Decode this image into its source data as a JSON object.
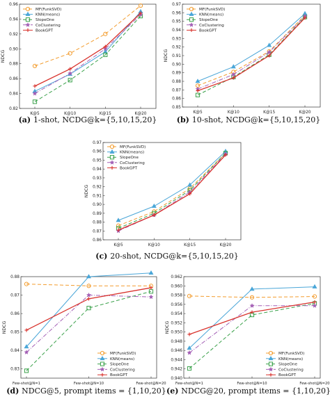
{
  "colors": {
    "MF(FunkSVD)": "#f39c2d",
    "KNN(means)": "#4aa6d8",
    "SlopeOne": "#3aa14a",
    "CoClustering": "#a35fb5",
    "BookGPT": "#d8322c"
  },
  "chart_data": [
    {
      "type": "line",
      "caption_letter": "(a)",
      "caption_text": "1-shot, NCDG@k={5,10,15,20}",
      "ylabel": "NDCG",
      "categories": [
        "K@5",
        "K@10",
        "K@15",
        "K@20"
      ],
      "ylim": [
        0.82,
        0.96
      ],
      "yticks": [
        "0.82",
        "0.84",
        "0.86",
        "0.88",
        "0.90",
        "0.92",
        "0.94",
        "0.96"
      ],
      "legend_position": "top-left",
      "series": [
        {
          "name": "MF(FunkSVD)",
          "marker": "circle",
          "dash": "5,3",
          "values": [
            0.877,
            0.894,
            0.92,
            0.958
          ]
        },
        {
          "name": "KNN(means)",
          "marker": "triangle",
          "dash": "",
          "values": [
            0.843,
            0.866,
            0.896,
            0.95
          ]
        },
        {
          "name": "SlopeOne",
          "marker": "square",
          "dash": "5,3",
          "values": [
            0.829,
            0.858,
            0.892,
            0.944
          ]
        },
        {
          "name": "CoClustering",
          "marker": "star",
          "dash": "6,2,1,2",
          "values": [
            0.84,
            0.867,
            0.9,
            0.946
          ]
        },
        {
          "name": "BookGPT",
          "marker": "plus",
          "dash": "",
          "values": [
            0.85,
            0.873,
            0.903,
            0.948
          ]
        }
      ]
    },
    {
      "type": "line",
      "caption_letter": "(b)",
      "caption_text": "10-shot, NCDG@k={5,10,15,20}",
      "ylabel": "NDCG",
      "categories": [
        "K@5",
        "K@10",
        "K@15",
        "K@20"
      ],
      "ylim": [
        0.85,
        0.97
      ],
      "yticks": [
        "0.85",
        "0.86",
        "0.87",
        "0.88",
        "0.89",
        "0.90",
        "0.91",
        "0.92",
        "0.93",
        "0.94",
        "0.95",
        "0.96",
        "0.97"
      ],
      "legend_position": "top-left",
      "series": [
        {
          "name": "MF(FunkSVD)",
          "marker": "circle",
          "dash": "5,3",
          "values": [
            0.875,
            0.891,
            0.915,
            0.957
          ]
        },
        {
          "name": "KNN(means)",
          "marker": "triangle",
          "dash": "",
          "values": [
            0.88,
            0.897,
            0.922,
            0.959
          ]
        },
        {
          "name": "SlopeOne",
          "marker": "square",
          "dash": "5,3",
          "values": [
            0.864,
            0.885,
            0.911,
            0.955
          ]
        },
        {
          "name": "CoClustering",
          "marker": "star",
          "dash": "6,2,1,2",
          "values": [
            0.871,
            0.888,
            0.914,
            0.956
          ]
        },
        {
          "name": "BookGPT",
          "marker": "plus",
          "dash": "",
          "values": [
            0.869,
            0.884,
            0.91,
            0.954
          ]
        }
      ]
    },
    {
      "type": "line",
      "caption_letter": "(c)",
      "caption_text": "20-shot, NCDG@k={5,10,15,20}",
      "ylabel": "NDCG",
      "categories": [
        "K@5",
        "K@10",
        "K@15",
        "K@20"
      ],
      "ylim": [
        0.86,
        0.97
      ],
      "yticks": [
        "0.86",
        "0.87",
        "0.88",
        "0.89",
        "0.90",
        "0.91",
        "0.92",
        "0.93",
        "0.94",
        "0.95",
        "0.96",
        "0.97"
      ],
      "legend_position": "top-left",
      "series": [
        {
          "name": "MF(FunkSVD)",
          "marker": "circle",
          "dash": "5,3",
          "values": [
            0.876,
            0.892,
            0.918,
            0.958
          ]
        },
        {
          "name": "KNN(means)",
          "marker": "triangle",
          "dash": "",
          "values": [
            0.882,
            0.898,
            0.922,
            0.96
          ]
        },
        {
          "name": "SlopeOne",
          "marker": "square",
          "dash": "5,3",
          "values": [
            0.873,
            0.89,
            0.916,
            0.958
          ]
        },
        {
          "name": "CoClustering",
          "marker": "star",
          "dash": "6,2,1,2",
          "values": [
            0.87,
            0.888,
            0.914,
            0.957
          ]
        },
        {
          "name": "BookGPT",
          "marker": "plus",
          "dash": "",
          "values": [
            0.871,
            0.888,
            0.912,
            0.956
          ]
        }
      ]
    },
    {
      "type": "line",
      "caption_letter": "(d)",
      "caption_text": "NDCG@5, prompt items = {1,10,20}",
      "ylabel": "NDCG",
      "categories": [
        "Few-shot@N=1",
        "Few-shot@N=10",
        "Few-shot@N=20"
      ],
      "ylim": [
        0.825,
        0.88
      ],
      "yticks": [
        "0.83",
        "0.84",
        "0.85",
        "0.86",
        "0.87",
        "0.88"
      ],
      "legend_position": "bottom-right",
      "series": [
        {
          "name": "MF(FunkSVD)",
          "marker": "circle",
          "dash": "5,3",
          "values": [
            0.876,
            0.875,
            0.875
          ]
        },
        {
          "name": "KNN(means)",
          "marker": "triangle",
          "dash": "",
          "values": [
            0.842,
            0.88,
            0.882
          ]
        },
        {
          "name": "SlopeOne",
          "marker": "square",
          "dash": "5,3",
          "values": [
            0.829,
            0.863,
            0.872
          ]
        },
        {
          "name": "CoClustering",
          "marker": "star",
          "dash": "6,2,1,2",
          "values": [
            0.839,
            0.87,
            0.869
          ]
        },
        {
          "name": "BookGPT",
          "marker": "plus",
          "dash": "",
          "values": [
            0.851,
            0.868,
            0.874
          ]
        }
      ]
    },
    {
      "type": "line",
      "caption_letter": "(e)",
      "caption_text": "NDCG@20, prompt items = {1,10,20}",
      "ylabel": "NDCG",
      "categories": [
        "Few-shot@N=1",
        "Few-shot@N=10",
        "Few-shot@N=20"
      ],
      "ylim": [
        0.94,
        0.962
      ],
      "yticks": [
        "0.940",
        "0.942",
        "0.944",
        "0.946",
        "0.948",
        "0.950",
        "0.952",
        "0.954",
        "0.956",
        "0.958",
        "0.960",
        "0.962"
      ],
      "legend_position": "bottom-right",
      "series": [
        {
          "name": "MF(FunkSVD)",
          "marker": "circle",
          "dash": "5,3",
          "values": [
            0.9578,
            0.9575,
            0.9577
          ]
        },
        {
          "name": "KNN(means)",
          "marker": "triangle",
          "dash": "",
          "values": [
            0.9465,
            0.9593,
            0.9598
          ]
        },
        {
          "name": "SlopeOne",
          "marker": "square",
          "dash": "5,3",
          "values": [
            0.9421,
            0.9537,
            0.9562
          ]
        },
        {
          "name": "CoClustering",
          "marker": "star",
          "dash": "6,2,1,2",
          "values": [
            0.9455,
            0.9557,
            0.9557
          ]
        },
        {
          "name": "BookGPT",
          "marker": "plus",
          "dash": "",
          "values": [
            0.9495,
            0.9543,
            0.9565
          ]
        }
      ]
    }
  ]
}
